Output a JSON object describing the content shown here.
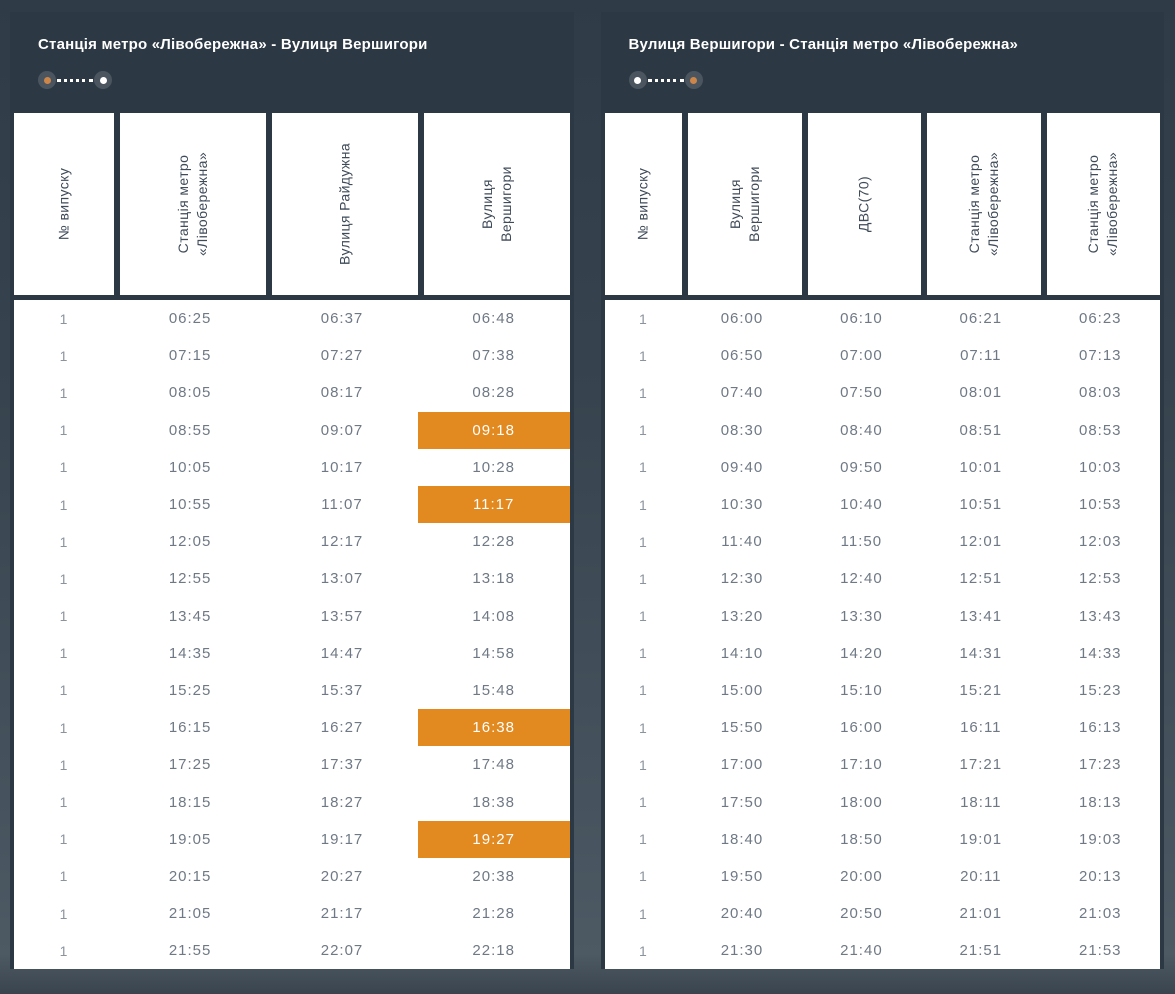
{
  "colors": {
    "accent_orange": "#e2891f",
    "card_dark": "#2c3844",
    "header_text": "#3f4b59",
    "body_text": "#6f7985",
    "indicator_circle": "#4a5560",
    "indicator_orange_dot": "#cd8649"
  },
  "tables": [
    {
      "title": "Станція метро «Лівобережна» - Вулиця Вершигори",
      "indicator": {
        "start": "orange",
        "end": "white"
      },
      "columns": [
        [
          "№ випуску"
        ],
        [
          "Станція метро",
          "«Лівобережна»"
        ],
        [
          "Вулиця Райдужна"
        ],
        [
          "Вулиця",
          "Вершигори"
        ]
      ],
      "col_widths": [
        "18%",
        "27.4%",
        "27.3%",
        "27.3%"
      ],
      "rows": [
        [
          "1",
          "06:25",
          "06:37",
          "06:48"
        ],
        [
          "1",
          "07:15",
          "07:27",
          "07:38"
        ],
        [
          "1",
          "08:05",
          "08:17",
          "08:28"
        ],
        [
          "1",
          "08:55",
          "09:07",
          "09:18"
        ],
        [
          "1",
          "10:05",
          "10:17",
          "10:28"
        ],
        [
          "1",
          "10:55",
          "11:07",
          "11:17"
        ],
        [
          "1",
          "12:05",
          "12:17",
          "12:28"
        ],
        [
          "1",
          "12:55",
          "13:07",
          "13:18"
        ],
        [
          "1",
          "13:45",
          "13:57",
          "14:08"
        ],
        [
          "1",
          "14:35",
          "14:47",
          "14:58"
        ],
        [
          "1",
          "15:25",
          "15:37",
          "15:48"
        ],
        [
          "1",
          "16:15",
          "16:27",
          "16:38"
        ],
        [
          "1",
          "17:25",
          "17:37",
          "17:48"
        ],
        [
          "1",
          "18:15",
          "18:27",
          "18:38"
        ],
        [
          "1",
          "19:05",
          "19:17",
          "19:27"
        ],
        [
          "1",
          "20:15",
          "20:27",
          "20:38"
        ],
        [
          "1",
          "21:05",
          "21:17",
          "21:28"
        ],
        [
          "1",
          "21:55",
          "22:07",
          "22:18"
        ]
      ],
      "highlights": [
        [
          3,
          3
        ],
        [
          5,
          3
        ],
        [
          11,
          3
        ],
        [
          14,
          3
        ]
      ]
    },
    {
      "title": "Вулиця Вершигори - Станція метро «Лівобережна»",
      "indicator": {
        "start": "white",
        "end": "orange"
      },
      "columns": [
        [
          "№ випуску"
        ],
        [
          "Вулиця",
          "Вершигори"
        ],
        [
          "ДВС(70)"
        ],
        [
          "Станція метро",
          "«Лівобережна»"
        ],
        [
          "Станція метро",
          "«Лівобережна»"
        ]
      ],
      "col_widths": [
        "14%",
        "21.5%",
        "21.5%",
        "21.5%",
        "21.5%"
      ],
      "rows": [
        [
          "1",
          "06:00",
          "06:10",
          "06:21",
          "06:23"
        ],
        [
          "1",
          "06:50",
          "07:00",
          "07:11",
          "07:13"
        ],
        [
          "1",
          "07:40",
          "07:50",
          "08:01",
          "08:03"
        ],
        [
          "1",
          "08:30",
          "08:40",
          "08:51",
          "08:53"
        ],
        [
          "1",
          "09:40",
          "09:50",
          "10:01",
          "10:03"
        ],
        [
          "1",
          "10:30",
          "10:40",
          "10:51",
          "10:53"
        ],
        [
          "1",
          "11:40",
          "11:50",
          "12:01",
          "12:03"
        ],
        [
          "1",
          "12:30",
          "12:40",
          "12:51",
          "12:53"
        ],
        [
          "1",
          "13:20",
          "13:30",
          "13:41",
          "13:43"
        ],
        [
          "1",
          "14:10",
          "14:20",
          "14:31",
          "14:33"
        ],
        [
          "1",
          "15:00",
          "15:10",
          "15:21",
          "15:23"
        ],
        [
          "1",
          "15:50",
          "16:00",
          "16:11",
          "16:13"
        ],
        [
          "1",
          "17:00",
          "17:10",
          "17:21",
          "17:23"
        ],
        [
          "1",
          "17:50",
          "18:00",
          "18:11",
          "18:13"
        ],
        [
          "1",
          "18:40",
          "18:50",
          "19:01",
          "19:03"
        ],
        [
          "1",
          "19:50",
          "20:00",
          "20:11",
          "20:13"
        ],
        [
          "1",
          "20:40",
          "20:50",
          "21:01",
          "21:03"
        ],
        [
          "1",
          "21:30",
          "21:40",
          "21:51",
          "21:53"
        ]
      ],
      "highlights": []
    }
  ]
}
